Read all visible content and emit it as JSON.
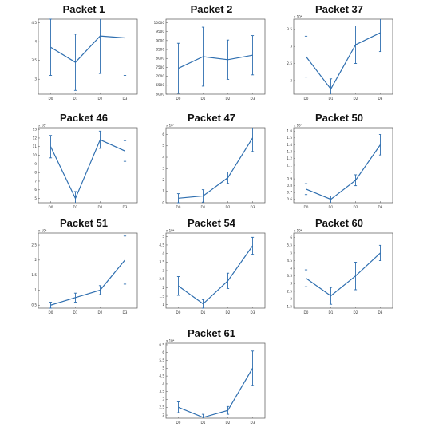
{
  "chart_data": [
    {
      "type": "line",
      "title": "Packet 1",
      "exponent_label": "",
      "categories": [
        "D0",
        "D1",
        "D2",
        "D3"
      ],
      "values": [
        3.85,
        3.45,
        4.15,
        4.1
      ],
      "errors": [
        0.75,
        0.75,
        1.0,
        1.0
      ],
      "ylim": [
        2.6,
        4.6
      ],
      "yticks": [
        2.5,
        3.0,
        3.5,
        4.0,
        4.5
      ],
      "ytick_labels": [
        "2.5",
        "3",
        "3.5",
        "4",
        "4.5"
      ]
    },
    {
      "type": "line",
      "title": "Packet 2",
      "exponent_label": "",
      "categories": [
        "D0",
        "D1",
        "D2",
        "D3"
      ],
      "values": [
        7450,
        8100,
        7930,
        8180
      ],
      "errors": [
        1400,
        1650,
        1100,
        1100
      ],
      "ylim": [
        6000,
        10200
      ],
      "yticks": [
        6000,
        6500,
        7000,
        7500,
        8000,
        8500,
        9000,
        9500,
        10000
      ],
      "ytick_labels": [
        "6000",
        "6500",
        "7000",
        "7500",
        "8000",
        "8500",
        "9000",
        "9500",
        "10000"
      ]
    },
    {
      "type": "line",
      "title": "Packet 37",
      "exponent_label": "x 10⁴",
      "categories": [
        "D0",
        "D1",
        "D2",
        "D3"
      ],
      "values": [
        2.7,
        1.75,
        3.05,
        3.4
      ],
      "errors": [
        0.6,
        0.3,
        0.55,
        0.55
      ],
      "ylim": [
        1.6,
        3.8
      ],
      "yticks": [
        2,
        2.5,
        3,
        3.5
      ],
      "ytick_labels": [
        "2",
        "2.5",
        "3",
        "3.5"
      ]
    },
    {
      "type": "line",
      "title": "Packet 46",
      "exponent_label": "x 10⁴",
      "categories": [
        "D0",
        "D1",
        "D2",
        "D3"
      ],
      "values": [
        11.0,
        5.0,
        11.8,
        10.5
      ],
      "errors": [
        1.3,
        0.8,
        1.0,
        1.2
      ],
      "ylim": [
        4.5,
        13.2
      ],
      "yticks": [
        5,
        6,
        7,
        8,
        9,
        10,
        11,
        12,
        13
      ],
      "ytick_labels": [
        "5",
        "6",
        "7",
        "8",
        "9",
        "10",
        "11",
        "12",
        "13"
      ]
    },
    {
      "type": "line",
      "title": "Packet 47",
      "exponent_label": "x 10⁴",
      "categories": [
        "D0",
        "D1",
        "D2",
        "D3"
      ],
      "values": [
        0.4,
        0.6,
        2.2,
        5.7
      ],
      "errors": [
        0.4,
        0.55,
        0.5,
        1.2
      ],
      "ylim": [
        0,
        6.6
      ],
      "yticks": [
        0,
        1,
        2,
        3,
        4,
        5,
        6
      ],
      "ytick_labels": [
        "0",
        "1",
        "2",
        "3",
        "4",
        "5",
        "6"
      ]
    },
    {
      "type": "line",
      "title": "Packet 50",
      "exponent_label": "x 10⁴",
      "categories": [
        "D0",
        "D1",
        "D2",
        "D3"
      ],
      "values": [
        0.75,
        0.6,
        0.88,
        1.4
      ],
      "errors": [
        0.08,
        0.05,
        0.08,
        0.15
      ],
      "ylim": [
        0.55,
        1.65
      ],
      "yticks": [
        0.6,
        0.7,
        0.8,
        0.9,
        1.0,
        1.1,
        1.2,
        1.3,
        1.4,
        1.5,
        1.6
      ],
      "ytick_labels": [
        "0.6",
        "0.7",
        "0.8",
        "0.9",
        "1",
        "1.1",
        "1.2",
        "1.3",
        "1.4",
        "1.5",
        "1.6"
      ]
    },
    {
      "type": "line",
      "title": "Packet 51",
      "exponent_label": "x 10⁴",
      "categories": [
        "D0",
        "D1",
        "D2",
        "D3"
      ],
      "values": [
        0.5,
        0.75,
        1.0,
        2.0
      ],
      "errors": [
        0.1,
        0.15,
        0.15,
        0.8
      ],
      "ylim": [
        0.4,
        2.9
      ],
      "yticks": [
        0.5,
        1,
        1.5,
        2,
        2.5
      ],
      "ytick_labels": [
        "0.5",
        "1",
        "1.5",
        "2",
        "2.5"
      ]
    },
    {
      "type": "line",
      "title": "Packet 54",
      "exponent_label": "x 10⁴",
      "categories": [
        "D0",
        "D1",
        "D2",
        "D3"
      ],
      "values": [
        2.1,
        1.05,
        2.4,
        4.45
      ],
      "errors": [
        0.55,
        0.25,
        0.45,
        0.5
      ],
      "ylim": [
        0.8,
        5.2
      ],
      "yticks": [
        1,
        1.5,
        2,
        2.5,
        3,
        3.5,
        4,
        4.5,
        5
      ],
      "ytick_labels": [
        "1",
        "1.5",
        "2",
        "2.5",
        "3",
        "3.5",
        "4",
        "4.5",
        "5"
      ]
    },
    {
      "type": "line",
      "title": "Packet 60",
      "exponent_label": "x 10⁴",
      "categories": [
        "D0",
        "D1",
        "D2",
        "D3"
      ],
      "values": [
        3.35,
        2.2,
        3.5,
        5.0
      ],
      "errors": [
        0.55,
        0.55,
        0.9,
        0.5
      ],
      "ylim": [
        1.4,
        6.3
      ],
      "yticks": [
        1.5,
        2,
        2.5,
        3,
        3.5,
        4,
        4.5,
        5,
        5.5,
        6
      ],
      "ytick_labels": [
        "1.5",
        "2",
        "2.5",
        "3",
        "3.5",
        "4",
        "4.5",
        "5",
        "5.5",
        "6"
      ]
    },
    {
      "type": "line",
      "title": "Packet 61",
      "exponent_label": "x 10⁴",
      "categories": [
        "D0",
        "D1",
        "D2",
        "D3"
      ],
      "values": [
        2.5,
        1.85,
        2.3,
        5.0
      ],
      "errors": [
        0.35,
        0.2,
        0.25,
        1.1
      ],
      "ylim": [
        1.8,
        6.6
      ],
      "yticks": [
        2,
        2.5,
        3,
        3.5,
        4,
        4.5,
        5,
        5.5,
        6,
        6.5
      ],
      "ytick_labels": [
        "2",
        "2.5",
        "3",
        "3.5",
        "4",
        "4.5",
        "5",
        "5.5",
        "6",
        "6.5"
      ]
    }
  ],
  "colors": {
    "series": "#2f6fb0",
    "axis": "#555555"
  }
}
